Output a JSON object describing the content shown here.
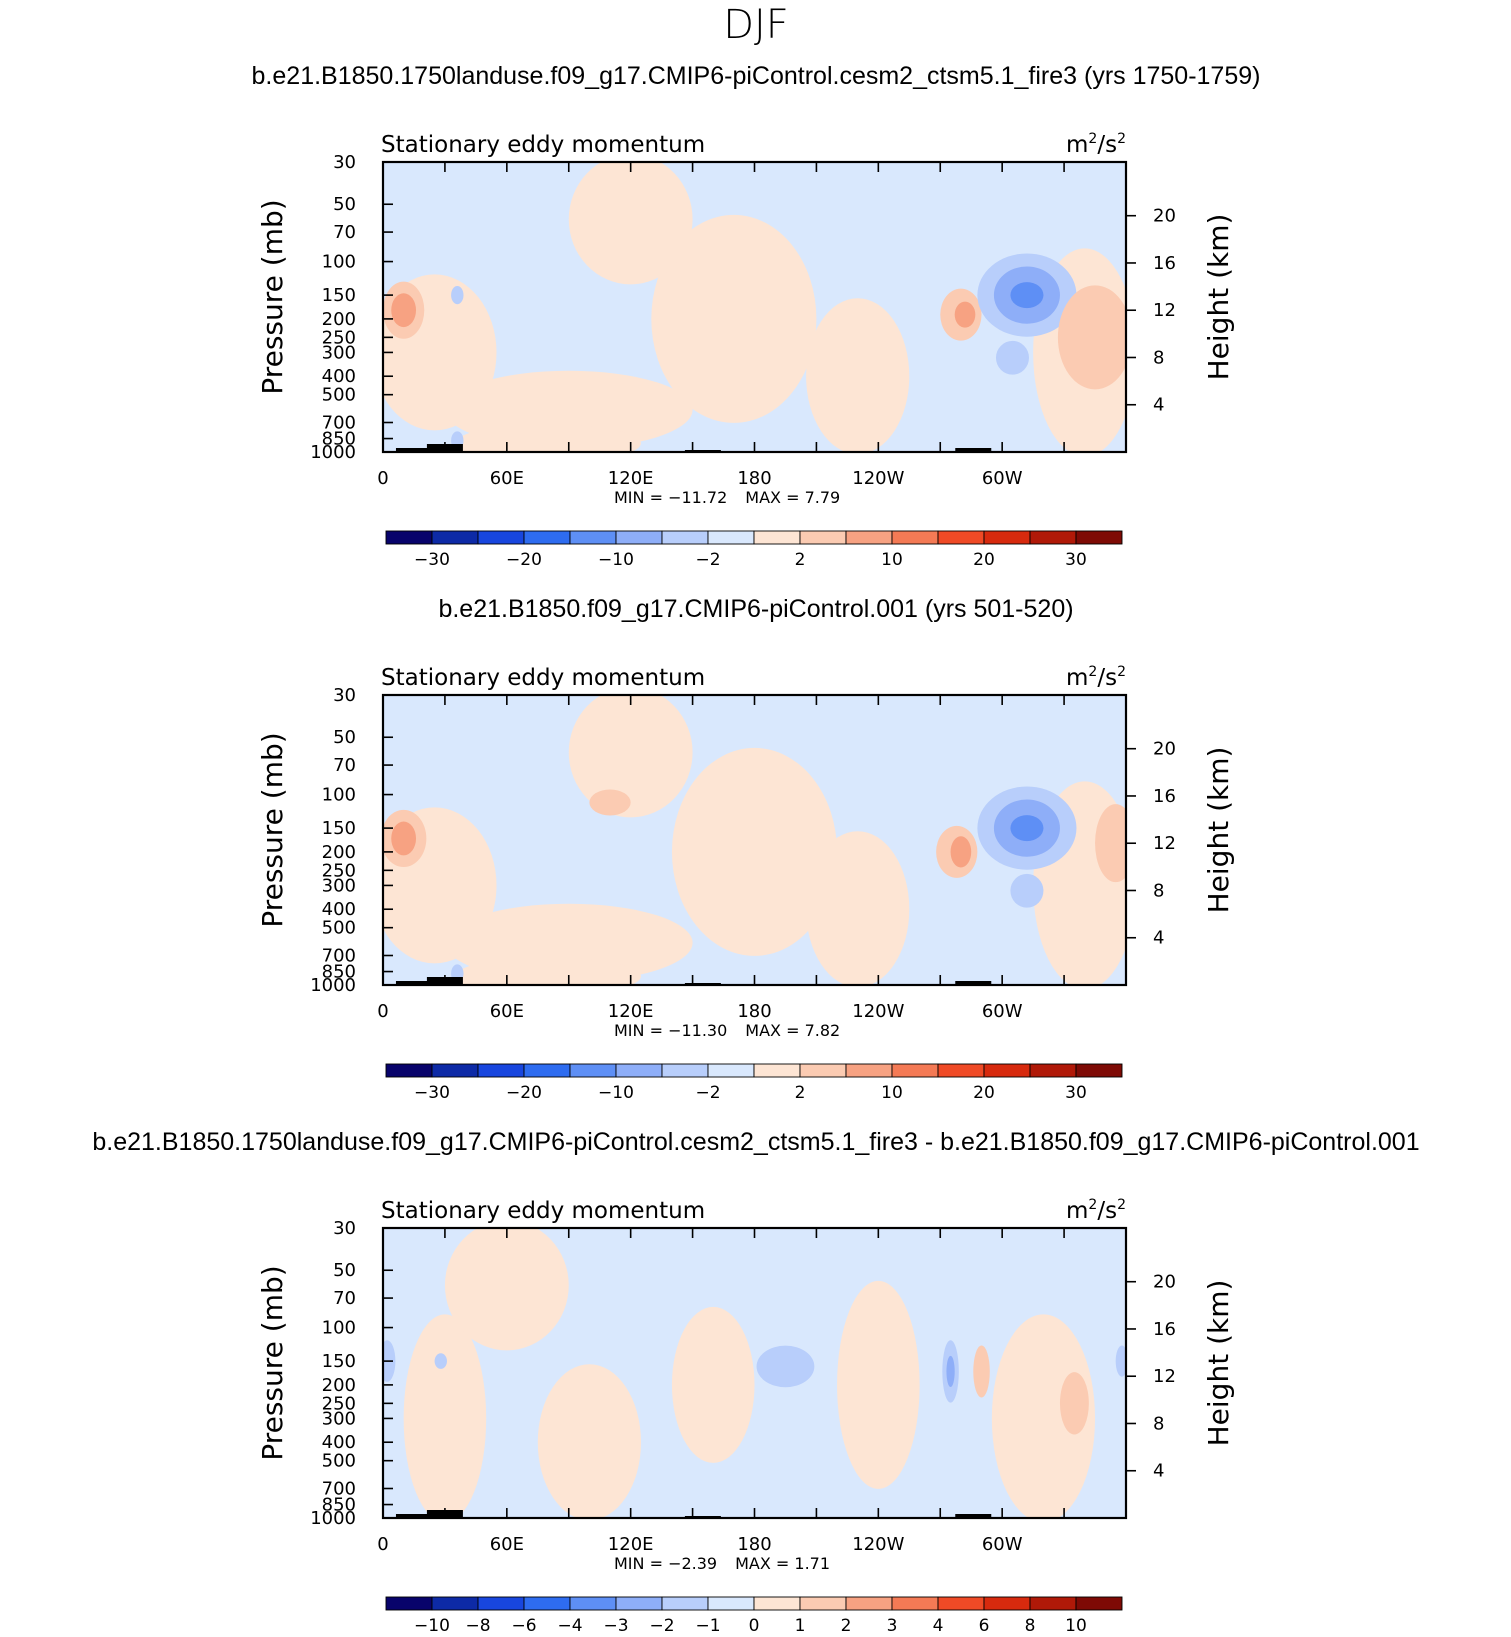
{
  "figure": {
    "title": "DJF"
  },
  "colors": {
    "levels_main": [
      "#08036b",
      "#0d2aa6",
      "#1846de",
      "#2e6cf0",
      "#5e8ff5",
      "#8eaef8",
      "#b8cefb",
      "#d9e8fd",
      "#fde5d4",
      "#fbcbb2",
      "#f7a282",
      "#f47a55",
      "#ef4a26",
      "#d72a0e",
      "#b01908",
      "#7e0a05"
    ],
    "levels_diff": [
      "#08036b",
      "#0d2aa6",
      "#1846de",
      "#2e6cf0",
      "#5e8ff5",
      "#8eaef8",
      "#b8cefb",
      "#d9e8fd",
      "#fde5d4",
      "#fbcbb2",
      "#f7a282",
      "#f47a55",
      "#ef4a26",
      "#d72a0e",
      "#b01908",
      "#7e0a05"
    ],
    "topography": "#000000"
  },
  "chart_data": [
    {
      "type": "contour",
      "title": "b.e21.B1850.1750landuse.f09_g17.CMIP6-piControl.cesm2_ctsm5.1_fire3 (yrs 1750-1759)",
      "left_label": "Stationary eddy momentum",
      "right_label": "m²/s²",
      "units_base": "m",
      "units_sup1": "2",
      "units_mid": "/s",
      "units_sup2": "2",
      "ylabel": "Pressure (mb)",
      "ylabel_right": "Height (km)",
      "x_ticks": [
        "0",
        "60E",
        "120E",
        "180",
        "120W",
        "60W"
      ],
      "x_range": [
        0,
        360
      ],
      "y_range_mb": [
        1000,
        30
      ],
      "pressure_ticks": [
        30,
        50,
        70,
        100,
        150,
        200,
        250,
        300,
        400,
        500,
        700,
        850,
        1000
      ],
      "height_ticks_km": [
        4,
        8,
        12,
        16,
        20
      ],
      "min_label": "MIN = ",
      "min_value": "−11.72",
      "max_label": "MAX = ",
      "max_value": "7.79",
      "colorbar_labels": [
        "−30",
        "−20",
        "−10",
        "−2",
        "2",
        "10",
        "20",
        "30"
      ],
      "colorbar_label_box": [
        1,
        3,
        5,
        7,
        9,
        11,
        13,
        15
      ],
      "features": [
        {
          "lon": 10,
          "p": 180,
          "w": 10,
          "h": 2.2,
          "level": 9
        },
        {
          "lon": 10,
          "p": 180,
          "w": 6,
          "h": 1.3,
          "level": 10
        },
        {
          "lon": 280,
          "p": 190,
          "w": 10,
          "h": 2.0,
          "level": 9
        },
        {
          "lon": 282,
          "p": 190,
          "w": 5,
          "h": 1.0,
          "level": 10
        },
        {
          "lon": 312,
          "p": 150,
          "w": 24,
          "h": 3.2,
          "level": 6
        },
        {
          "lon": 312,
          "p": 150,
          "w": 16,
          "h": 2.2,
          "level": 5
        },
        {
          "lon": 312,
          "p": 150,
          "w": 8,
          "h": 1.0,
          "level": 4
        },
        {
          "lon": 305,
          "p": 320,
          "w": 8,
          "h": 1.3,
          "level": 6
        },
        {
          "lon": 345,
          "p": 250,
          "w": 18,
          "h": 4.0,
          "level": 9
        },
        {
          "lon": 36,
          "p": 150,
          "w": 3,
          "h": 0.7,
          "level": 6
        },
        {
          "lon": 36,
          "p": 870,
          "w": 3,
          "h": 0.7,
          "level": 6
        }
      ],
      "warm_regions": [
        {
          "lon": 25,
          "p": 300,
          "w": 30,
          "h": 6
        },
        {
          "lon": 90,
          "p": 600,
          "w": 60,
          "h": 3
        },
        {
          "lon": 170,
          "p": 200,
          "w": 40,
          "h": 8
        },
        {
          "lon": 120,
          "p": 60,
          "w": 30,
          "h": 5
        },
        {
          "lon": 230,
          "p": 400,
          "w": 25,
          "h": 6
        },
        {
          "lon": 340,
          "p": 300,
          "w": 25,
          "h": 8
        },
        {
          "lon": 80,
          "p": 900,
          "w": 45,
          "h": 1.5
        }
      ],
      "topography_peaks": [
        {
          "lon": 15,
          "hpx": 4
        },
        {
          "lon": 30,
          "hpx": 8
        },
        {
          "lon": 155,
          "hpx": 2
        },
        {
          "lon": 286,
          "hpx": 4
        }
      ]
    },
    {
      "type": "contour",
      "title": "b.e21.B1850.f09_g17.CMIP6-piControl.001 (yrs 501-520)",
      "left_label": "Stationary eddy momentum",
      "right_label": "m²/s²",
      "units_base": "m",
      "units_sup1": "2",
      "units_mid": "/s",
      "units_sup2": "2",
      "ylabel": "Pressure (mb)",
      "ylabel_right": "Height (km)",
      "x_ticks": [
        "0",
        "60E",
        "120E",
        "180",
        "120W",
        "60W"
      ],
      "x_range": [
        0,
        360
      ],
      "y_range_mb": [
        1000,
        30
      ],
      "pressure_ticks": [
        30,
        50,
        70,
        100,
        150,
        200,
        250,
        300,
        400,
        500,
        700,
        850,
        1000
      ],
      "height_ticks_km": [
        4,
        8,
        12,
        16,
        20
      ],
      "min_label": "MIN = ",
      "min_value": "−11.30",
      "max_label": "MAX = ",
      "max_value": "7.82",
      "colorbar_labels": [
        "−30",
        "−20",
        "−10",
        "−2",
        "2",
        "10",
        "20",
        "30"
      ],
      "colorbar_label_box": [
        1,
        3,
        5,
        7,
        9,
        11,
        13,
        15
      ],
      "features": [
        {
          "lon": 10,
          "p": 170,
          "w": 11,
          "h": 2.2,
          "level": 9
        },
        {
          "lon": 10,
          "p": 170,
          "w": 6,
          "h": 1.3,
          "level": 10
        },
        {
          "lon": 278,
          "p": 200,
          "w": 10,
          "h": 2.0,
          "level": 9
        },
        {
          "lon": 280,
          "p": 200,
          "w": 5,
          "h": 1.2,
          "level": 10
        },
        {
          "lon": 312,
          "p": 150,
          "w": 24,
          "h": 3.2,
          "level": 6
        },
        {
          "lon": 312,
          "p": 150,
          "w": 16,
          "h": 2.2,
          "level": 5
        },
        {
          "lon": 312,
          "p": 150,
          "w": 8,
          "h": 1.0,
          "level": 4
        },
        {
          "lon": 312,
          "p": 320,
          "w": 8,
          "h": 1.3,
          "level": 6
        },
        {
          "lon": 110,
          "p": 110,
          "w": 10,
          "h": 1.0,
          "level": 9
        },
        {
          "lon": 355,
          "p": 180,
          "w": 10,
          "h": 3.0,
          "level": 9
        },
        {
          "lon": 36,
          "p": 870,
          "w": 3,
          "h": 0.7,
          "level": 6
        }
      ],
      "warm_regions": [
        {
          "lon": 25,
          "p": 300,
          "w": 30,
          "h": 6
        },
        {
          "lon": 90,
          "p": 600,
          "w": 60,
          "h": 3
        },
        {
          "lon": 180,
          "p": 200,
          "w": 40,
          "h": 8
        },
        {
          "lon": 120,
          "p": 60,
          "w": 30,
          "h": 5
        },
        {
          "lon": 230,
          "p": 400,
          "w": 25,
          "h": 6
        },
        {
          "lon": 340,
          "p": 300,
          "w": 25,
          "h": 8
        },
        {
          "lon": 80,
          "p": 900,
          "w": 45,
          "h": 1.5
        }
      ],
      "topography_peaks": [
        {
          "lon": 15,
          "hpx": 4
        },
        {
          "lon": 30,
          "hpx": 8
        },
        {
          "lon": 155,
          "hpx": 2
        },
        {
          "lon": 286,
          "hpx": 4
        }
      ]
    },
    {
      "type": "contour",
      "title": "b.e21.B1850.1750landuse.f09_g17.CMIP6-piControl.cesm2_ctsm5.1_fire3 - b.e21.B1850.f09_g17.CMIP6-piControl.001",
      "left_label": "Stationary eddy momentum",
      "right_label": "m²/s²",
      "units_base": "m",
      "units_sup1": "2",
      "units_mid": "/s",
      "units_sup2": "2",
      "ylabel": "Pressure (mb)",
      "ylabel_right": "Height (km)",
      "x_ticks": [
        "0",
        "60E",
        "120E",
        "180",
        "120W",
        "60W"
      ],
      "x_range": [
        0,
        360
      ],
      "y_range_mb": [
        1000,
        30
      ],
      "pressure_ticks": [
        30,
        50,
        70,
        100,
        150,
        200,
        250,
        300,
        400,
        500,
        700,
        850,
        1000
      ],
      "height_ticks_km": [
        4,
        8,
        12,
        16,
        20
      ],
      "min_label": "MIN = ",
      "min_value": "−2.39",
      "max_label": "MAX = ",
      "max_value": "1.71",
      "colorbar_labels": [
        "−10",
        "−8",
        "−6",
        "−4",
        "−3",
        "−2",
        "−1",
        "0",
        "1",
        "2",
        "3",
        "4",
        "6",
        "8",
        "10"
      ],
      "colorbar_label_box": [
        1,
        2,
        3,
        4,
        5,
        6,
        7,
        8,
        9,
        10,
        11,
        12,
        13,
        14,
        15
      ],
      "features": [
        {
          "lon": 195,
          "p": 160,
          "w": 14,
          "h": 1.6,
          "level": 6
        },
        {
          "lon": 275,
          "p": 170,
          "w": 4,
          "h": 2.4,
          "level": 6
        },
        {
          "lon": 275,
          "p": 170,
          "w": 2,
          "h": 1.2,
          "level": 5
        },
        {
          "lon": 290,
          "p": 170,
          "w": 4,
          "h": 2.0,
          "level": 9
        },
        {
          "lon": 335,
          "p": 250,
          "w": 7,
          "h": 2.4,
          "level": 9
        },
        {
          "lon": 28,
          "p": 150,
          "w": 3,
          "h": 0.6,
          "level": 6
        },
        {
          "lon": 2,
          "p": 150,
          "w": 4,
          "h": 1.6,
          "level": 6
        },
        {
          "lon": 358,
          "p": 150,
          "w": 3,
          "h": 1.2,
          "level": 6
        }
      ],
      "warm_regions": [
        {
          "lon": 30,
          "p": 300,
          "w": 20,
          "h": 8
        },
        {
          "lon": 100,
          "p": 400,
          "w": 25,
          "h": 6
        },
        {
          "lon": 160,
          "p": 200,
          "w": 20,
          "h": 6
        },
        {
          "lon": 240,
          "p": 200,
          "w": 20,
          "h": 8
        },
        {
          "lon": 320,
          "p": 300,
          "w": 25,
          "h": 8
        },
        {
          "lon": 60,
          "p": 60,
          "w": 30,
          "h": 5
        }
      ],
      "topography_peaks": [
        {
          "lon": 15,
          "hpx": 4
        },
        {
          "lon": 30,
          "hpx": 8
        },
        {
          "lon": 155,
          "hpx": 2
        },
        {
          "lon": 286,
          "hpx": 4
        }
      ]
    }
  ]
}
